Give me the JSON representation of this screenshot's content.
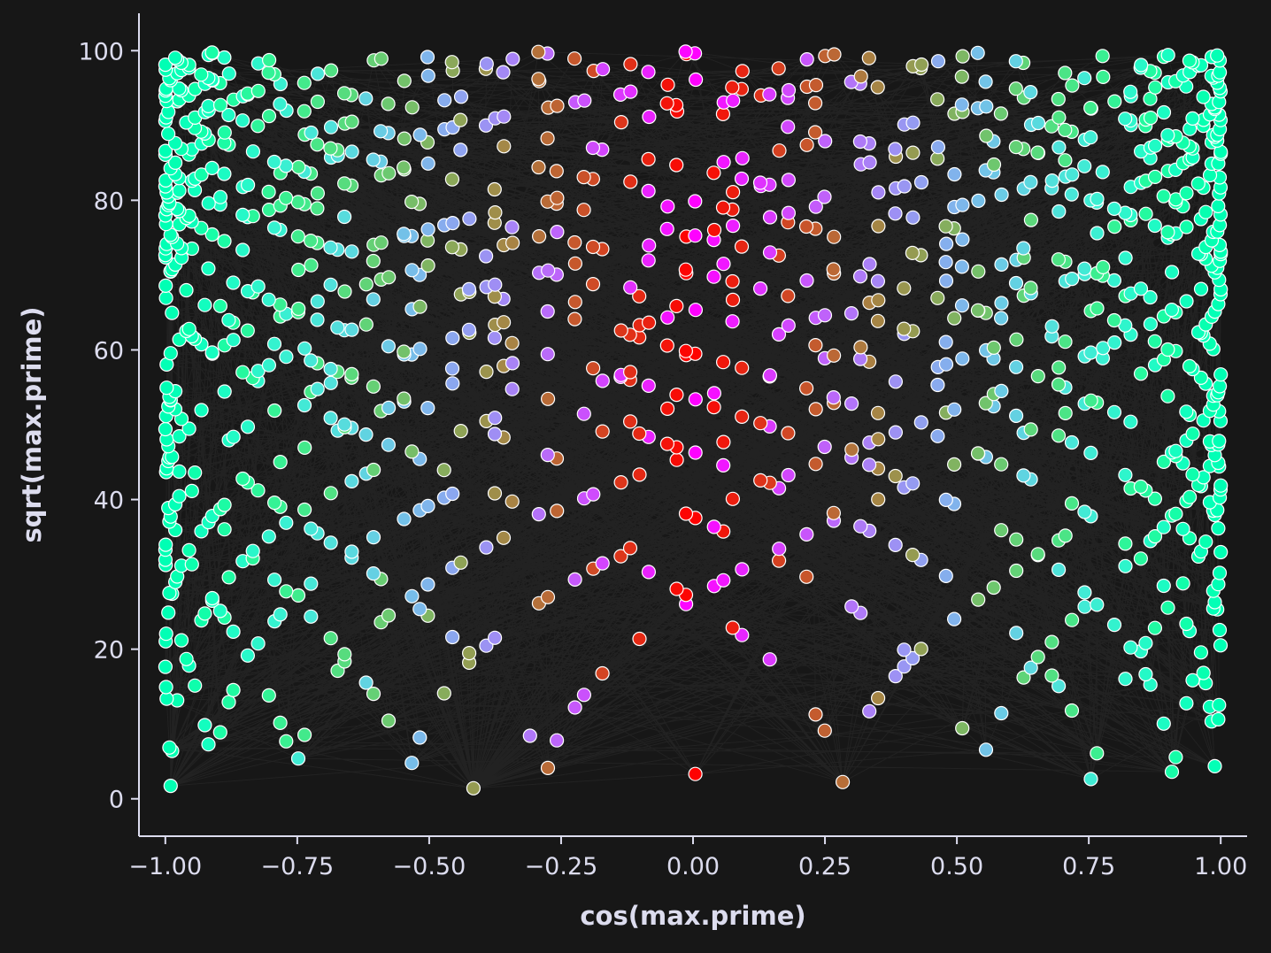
{
  "chart_data": {
    "type": "scatter",
    "title": "",
    "xlabel": "cos(max.prime)",
    "ylabel": "sqrt(max.prime)",
    "xlim": [
      -1.05,
      1.05
    ],
    "ylim": [
      -5,
      105
    ],
    "x_ticks": [
      "−1.00",
      "−0.75",
      "−0.50",
      "−0.25",
      "0.00",
      "0.25",
      "0.50",
      "0.75",
      "1.00"
    ],
    "x_tick_values": [
      -1.0,
      -0.75,
      -0.5,
      -0.25,
      0.0,
      0.25,
      0.5,
      0.75,
      1.0
    ],
    "y_ticks": [
      "0",
      "20",
      "40",
      "60",
      "80",
      "100"
    ],
    "y_tick_values": [
      0,
      20,
      40,
      60,
      80,
      100
    ],
    "grid": false,
    "legend": "none",
    "x_formula": "cos(n)",
    "y_formula": "sqrt(n)",
    "n_range": [
      2,
      10000
    ],
    "point_filter": "n is prime",
    "color_by": "abs(x)",
    "colormap": "rainbow",
    "point_edge_color": "#ffffff",
    "edge_lines": "faint gray lines connecting the points",
    "colors": {
      "background": "#171717",
      "axis": "#dcdcee",
      "edge_line": "#bbbbbb"
    }
  }
}
